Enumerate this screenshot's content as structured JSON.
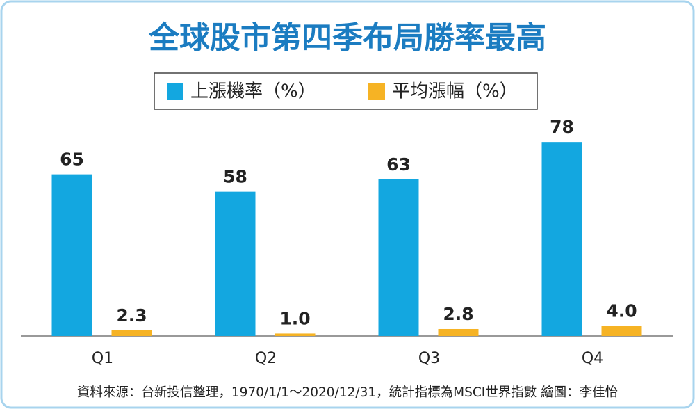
{
  "chart_data": {
    "type": "bar",
    "title": "全球股市第四季布局勝率最高",
    "categories": [
      "Q1",
      "Q2",
      "Q3",
      "Q4"
    ],
    "series": [
      {
        "name": "上漲機率（%）",
        "color": "#13a7e0",
        "values": [
          65,
          58,
          63,
          78
        ]
      },
      {
        "name": "平均漲幅（%）",
        "color": "#f6b324",
        "values": [
          2.3,
          1.0,
          2.8,
          4.0
        ],
        "value_labels": [
          "2.3",
          "1.0",
          "2.8",
          "4.0"
        ]
      }
    ],
    "source": "資料來源：台新投信整理，1970/1/1～2020/12/31，統計指標為MSCI世界指數  繪圖：李佳怡"
  }
}
